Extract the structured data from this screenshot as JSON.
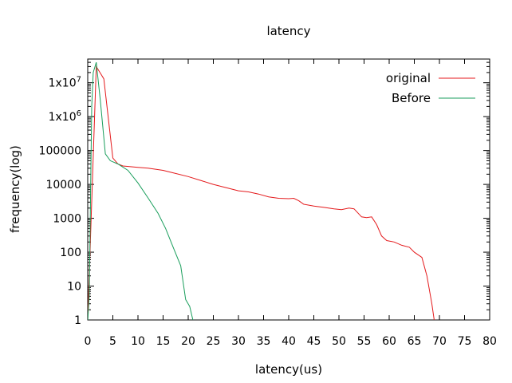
{
  "chart_data": {
    "type": "line",
    "title": "latency",
    "xlabel": "latency(us)",
    "ylabel": "frequency(log)",
    "xlim": [
      0,
      80
    ],
    "ylim": [
      1,
      50000000
    ],
    "y_scale": "log",
    "x_ticks": [
      "0",
      "5",
      "10",
      "15",
      "20",
      "25",
      "30",
      "35",
      "40",
      "45",
      "50",
      "55",
      "60",
      "65",
      "70",
      "75",
      "80"
    ],
    "x_tick_values": [
      0,
      5,
      10,
      15,
      20,
      25,
      30,
      35,
      40,
      45,
      50,
      55,
      60,
      65,
      70,
      75,
      80
    ],
    "y_ticks": [
      {
        "value": 1,
        "label": "1",
        "sup": ""
      },
      {
        "value": 10,
        "label": "10",
        "sup": ""
      },
      {
        "value": 100,
        "label": "100",
        "sup": ""
      },
      {
        "value": 1000,
        "label": "1000",
        "sup": ""
      },
      {
        "value": 10000,
        "label": "10000",
        "sup": ""
      },
      {
        "value": 100000,
        "label": "100000",
        "sup": ""
      },
      {
        "value": 1000000,
        "label": "1x10",
        "sup": "6"
      },
      {
        "value": 10000000,
        "label": "1x10",
        "sup": "7"
      }
    ],
    "grid": false,
    "legend_position": "top-right",
    "series": [
      {
        "name": "original",
        "color": "#e41a1c",
        "points": [
          [
            0,
            1
          ],
          [
            1.7,
            30000000
          ],
          [
            3.2,
            13000000
          ],
          [
            5,
            60000
          ],
          [
            6,
            40000
          ],
          [
            7,
            35000
          ],
          [
            10,
            32000
          ],
          [
            12,
            30000
          ],
          [
            15,
            26000
          ],
          [
            17,
            22000
          ],
          [
            20,
            17000
          ],
          [
            25,
            10000
          ],
          [
            30,
            6500
          ],
          [
            32,
            6000
          ],
          [
            34,
            5200
          ],
          [
            36,
            4300
          ],
          [
            38,
            3900
          ],
          [
            40,
            3800
          ],
          [
            41,
            3900
          ],
          [
            42,
            3300
          ],
          [
            43,
            2600
          ],
          [
            45,
            2300
          ],
          [
            47,
            2100
          ],
          [
            49,
            1900
          ],
          [
            50.5,
            1800
          ],
          [
            52,
            2000
          ],
          [
            53,
            1900
          ],
          [
            54.5,
            1100
          ],
          [
            55.5,
            1050
          ],
          [
            56.5,
            1100
          ],
          [
            57.5,
            650
          ],
          [
            58.5,
            300
          ],
          [
            59.5,
            220
          ],
          [
            61,
            200
          ],
          [
            62.5,
            160
          ],
          [
            64,
            140
          ],
          [
            65,
            100
          ],
          [
            66.5,
            70
          ],
          [
            67.5,
            20
          ],
          [
            68.5,
            3
          ],
          [
            69,
            0.9
          ]
        ]
      },
      {
        "name": "Before",
        "color": "#1a9e5c",
        "points": [
          [
            0,
            0.9
          ],
          [
            0.3,
            5
          ],
          [
            0.8,
            2000000
          ],
          [
            1.1,
            20000000
          ],
          [
            1.7,
            40000000
          ],
          [
            2.5,
            3000000
          ],
          [
            3.5,
            80000
          ],
          [
            4.5,
            50000
          ],
          [
            6,
            40000
          ],
          [
            8,
            26000
          ],
          [
            10,
            11000
          ],
          [
            12,
            4000
          ],
          [
            14,
            1400
          ],
          [
            15.5,
            500
          ],
          [
            17,
            140
          ],
          [
            18.5,
            40
          ],
          [
            19.5,
            4
          ],
          [
            20.3,
            2.5
          ],
          [
            21,
            0.9
          ]
        ]
      }
    ]
  }
}
